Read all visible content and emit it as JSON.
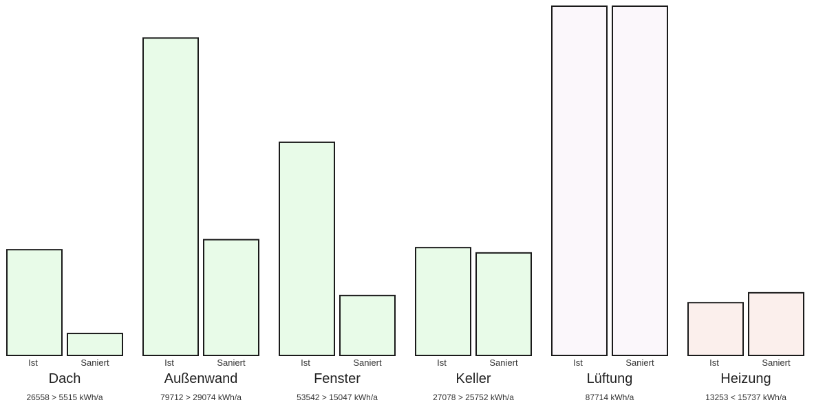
{
  "chart_data": {
    "type": "bar",
    "bar_labels": [
      "Ist",
      "Saniert"
    ],
    "groups": [
      {
        "name": "Dach",
        "summary": "26558 > 5515 kWh/a",
        "ist": 26558,
        "saniert": 5515,
        "color": "#e8fbe8"
      },
      {
        "name": "Außenwand",
        "summary": "79712 > 29074 kWh/a",
        "ist": 79712,
        "saniert": 29074,
        "color": "#e8fbe8"
      },
      {
        "name": "Fenster",
        "summary": "53542 > 15047 kWh/a",
        "ist": 53542,
        "saniert": 15047,
        "color": "#e8fbe8"
      },
      {
        "name": "Keller",
        "summary": "27078 > 25752 kWh/a",
        "ist": 27078,
        "saniert": 25752,
        "color": "#e8fbe8"
      },
      {
        "name": "Lüftung",
        "summary": "87714 kWh/a",
        "ist": 87714,
        "saniert": 87714,
        "color": "#fbf7fb"
      },
      {
        "name": "Heizung",
        "summary": "13253 < 15737 kWh/a",
        "ist": 13253,
        "saniert": 15737,
        "color": "#fbefec"
      }
    ],
    "ylim": [
      0,
      87714
    ],
    "grid": false,
    "legend": "none"
  }
}
